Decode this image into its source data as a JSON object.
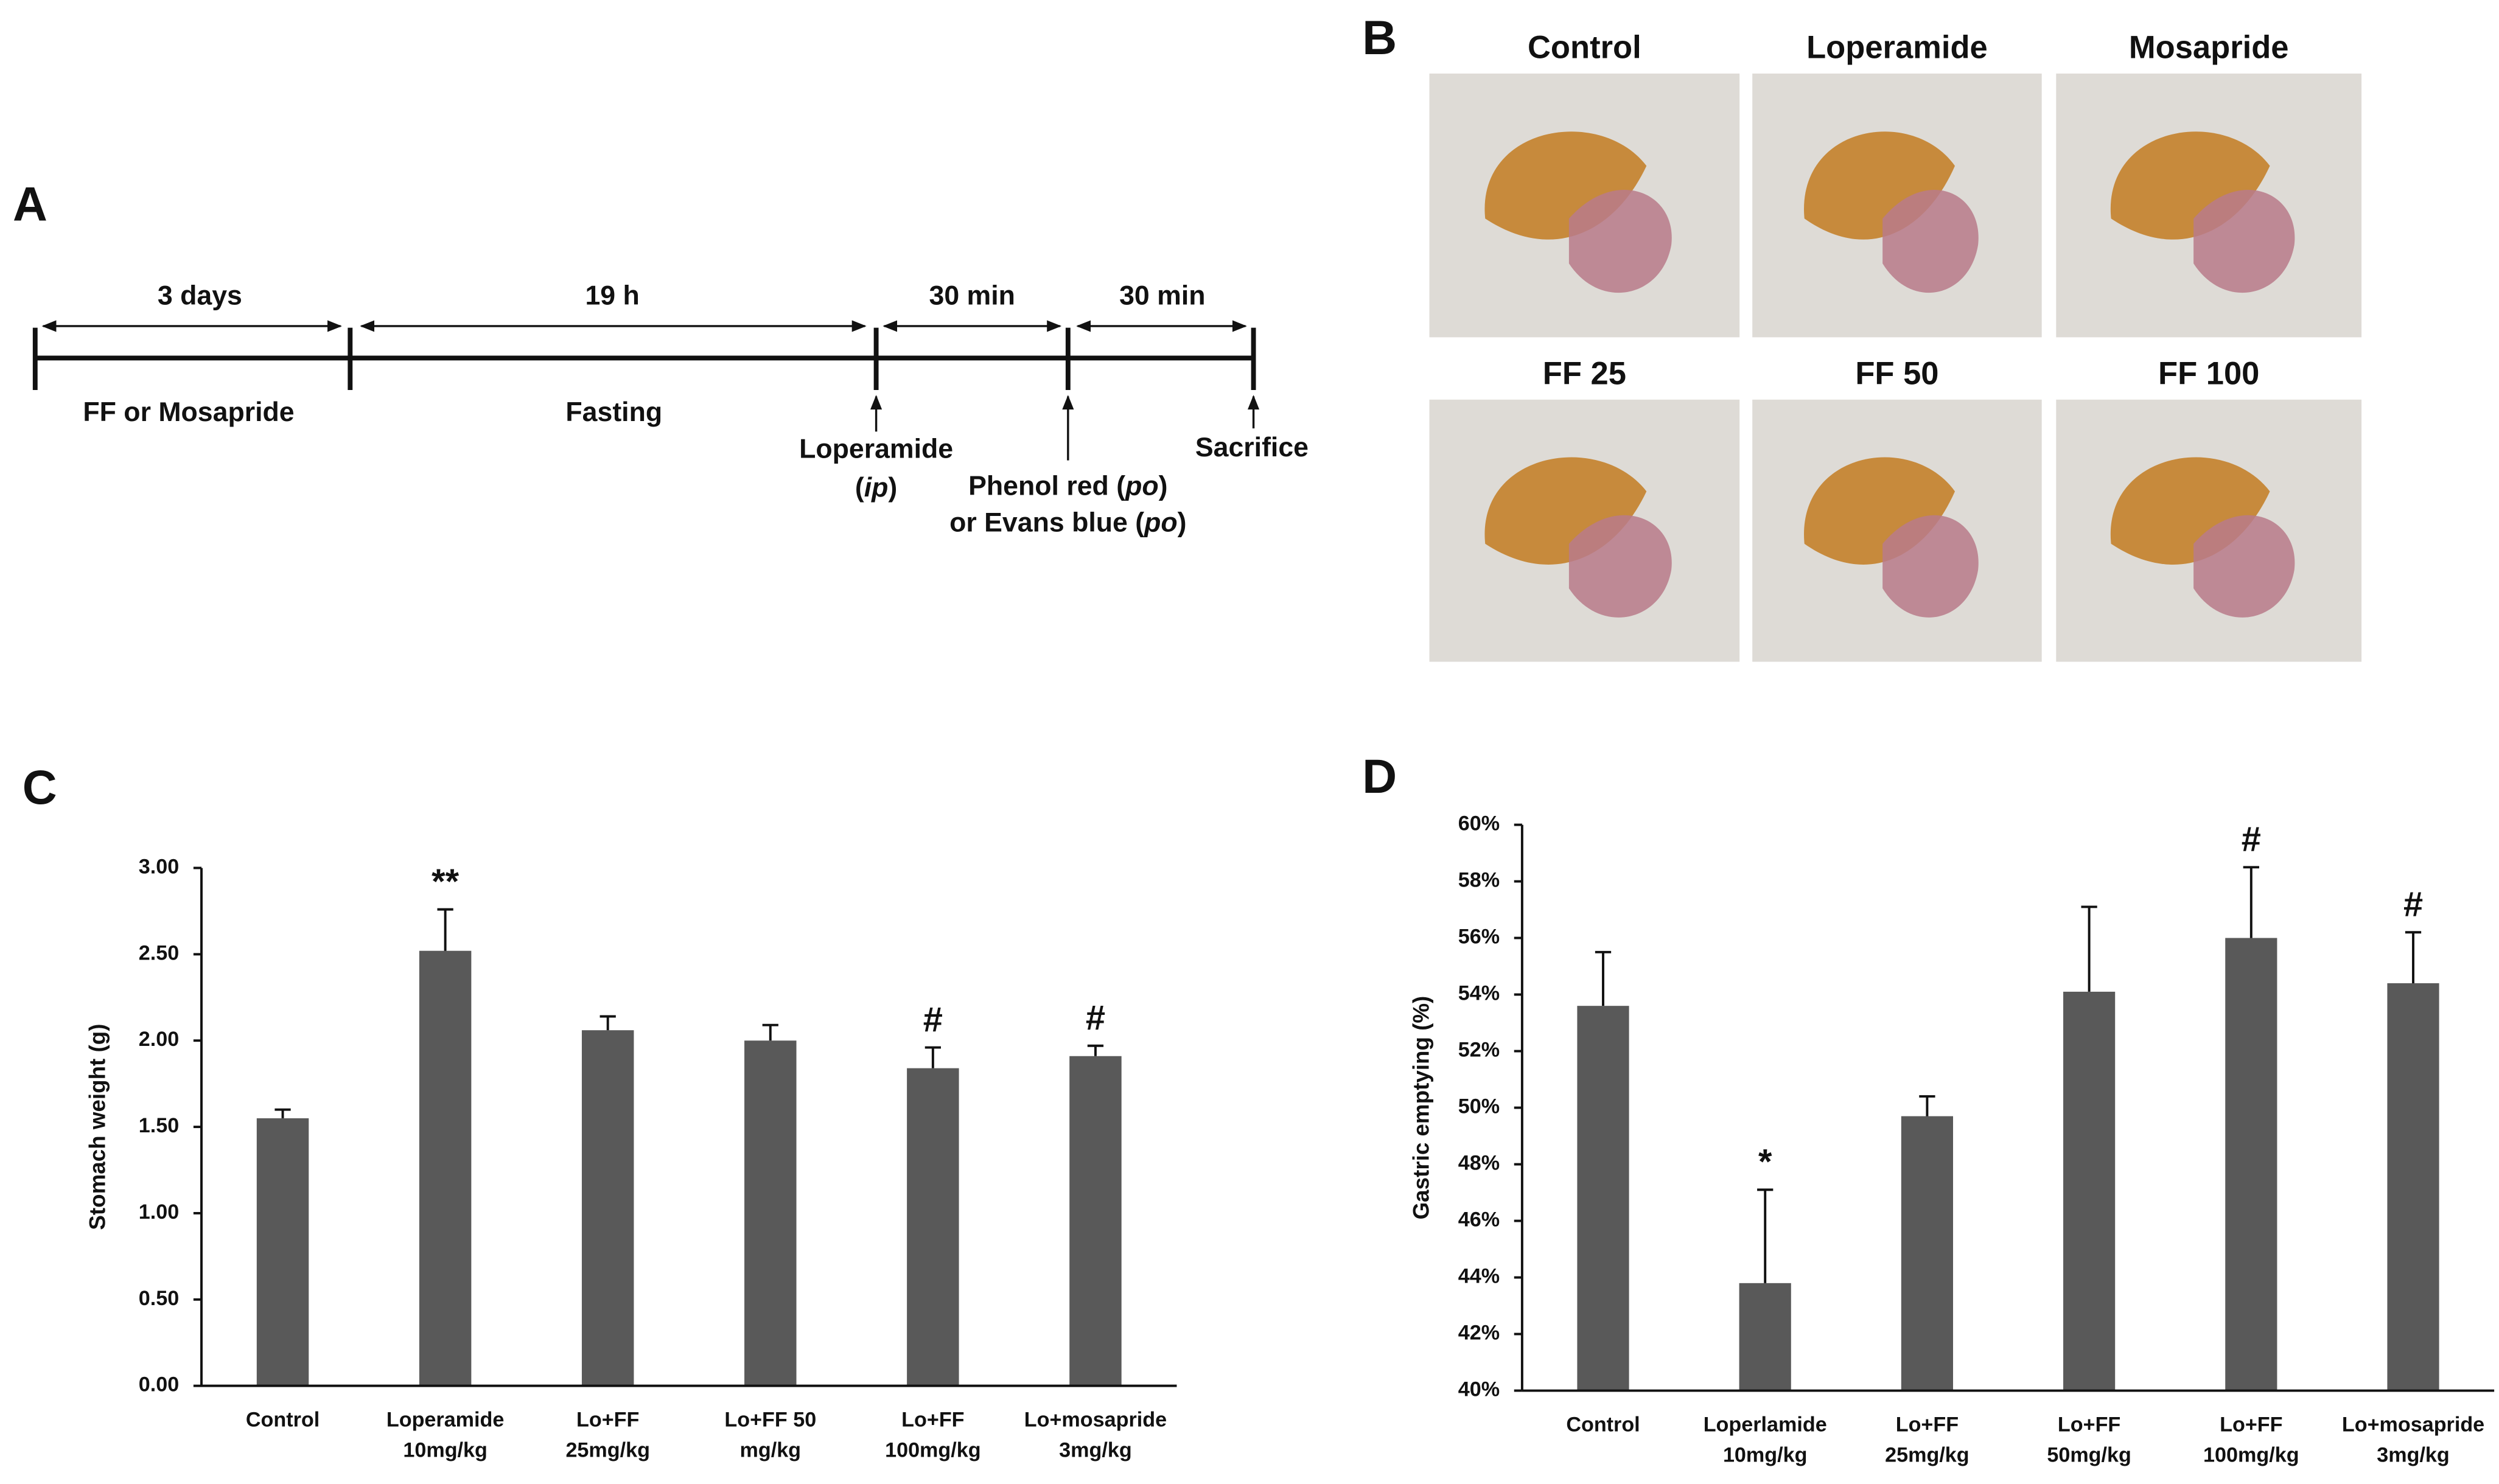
{
  "panel_labels": [
    "A",
    "B",
    "C",
    "D"
  ],
  "timeline": {
    "durations": [
      "3 days",
      "19 h",
      "30 min",
      "30 min"
    ],
    "phases": [
      "FF or Mosapride",
      "Fasting"
    ],
    "loperamide": [
      "Loperamide",
      "(",
      "ip",
      ")"
    ],
    "dye": [
      "Phenol red (",
      "po",
      ")",
      "or Evans blue (",
      "po",
      ")"
    ],
    "sacrifice": "Sacrifice"
  },
  "photos": {
    "labels": [
      "Control",
      "Loperamide",
      "Mosapride",
      "FF 25",
      "FF 50",
      "FF 100"
    ]
  },
  "chart_data": [
    {
      "type": "bar",
      "y_label": "Stomach weight (g)",
      "categories": [
        [
          "Control"
        ],
        [
          "Loperamide",
          "10mg/kg"
        ],
        [
          "Lo+FF",
          "25mg/kg"
        ],
        [
          "Lo+FF 50",
          "mg/kg"
        ],
        [
          "Lo+FF",
          "100mg/kg"
        ],
        [
          "Lo+mosapride",
          "3mg/kg"
        ]
      ],
      "values": [
        1.55,
        2.52,
        2.06,
        2.0,
        1.84,
        1.91
      ],
      "errors": [
        0.05,
        0.24,
        0.08,
        0.09,
        0.12,
        0.06
      ],
      "value_annotations": [
        null,
        "**",
        null,
        null,
        "#",
        "#"
      ],
      "color": "#595959",
      "ylim": [
        0,
        3
      ],
      "yticks": [
        {
          "value": 0,
          "label": "0.00"
        },
        {
          "value": 0.5,
          "label": "0.50"
        },
        {
          "value": 1,
          "label": "1.00"
        },
        {
          "value": 1.5,
          "label": "1.50"
        },
        {
          "value": 2,
          "label": "2.00"
        },
        {
          "value": 2.5,
          "label": "2.50"
        },
        {
          "value": 3,
          "label": "3.00"
        }
      ]
    },
    {
      "type": "bar",
      "y_label": "Gastric emptying (%)",
      "categories": [
        [
          "Control"
        ],
        [
          "Loperlamide",
          "10mg/kg"
        ],
        [
          "Lo+FF",
          "25mg/kg"
        ],
        [
          "Lo+FF",
          "50mg/kg"
        ],
        [
          "Lo+FF",
          "100mg/kg"
        ],
        [
          "Lo+mosapride",
          "3mg/kg"
        ]
      ],
      "values": [
        53.6,
        43.8,
        49.7,
        54.1,
        56.0,
        54.4
      ],
      "errors": [
        1.9,
        3.3,
        0.7,
        3.0,
        2.5,
        1.8
      ],
      "value_annotations": [
        null,
        "*",
        null,
        null,
        "#",
        "#"
      ],
      "color": "#595959",
      "ylim": [
        40,
        60
      ],
      "yticks": [
        {
          "value": 40,
          "label": "40%"
        },
        {
          "value": 42,
          "label": "42%"
        },
        {
          "value": 44,
          "label": "44%"
        },
        {
          "value": 46,
          "label": "46%"
        },
        {
          "value": 48,
          "label": "48%"
        },
        {
          "value": 50,
          "label": "50%"
        },
        {
          "value": 52,
          "label": "52%"
        },
        {
          "value": 54,
          "label": "54%"
        },
        {
          "value": 56,
          "label": "56%"
        },
        {
          "value": 58,
          "label": "58%"
        },
        {
          "value": 60,
          "label": "60%"
        }
      ]
    }
  ]
}
